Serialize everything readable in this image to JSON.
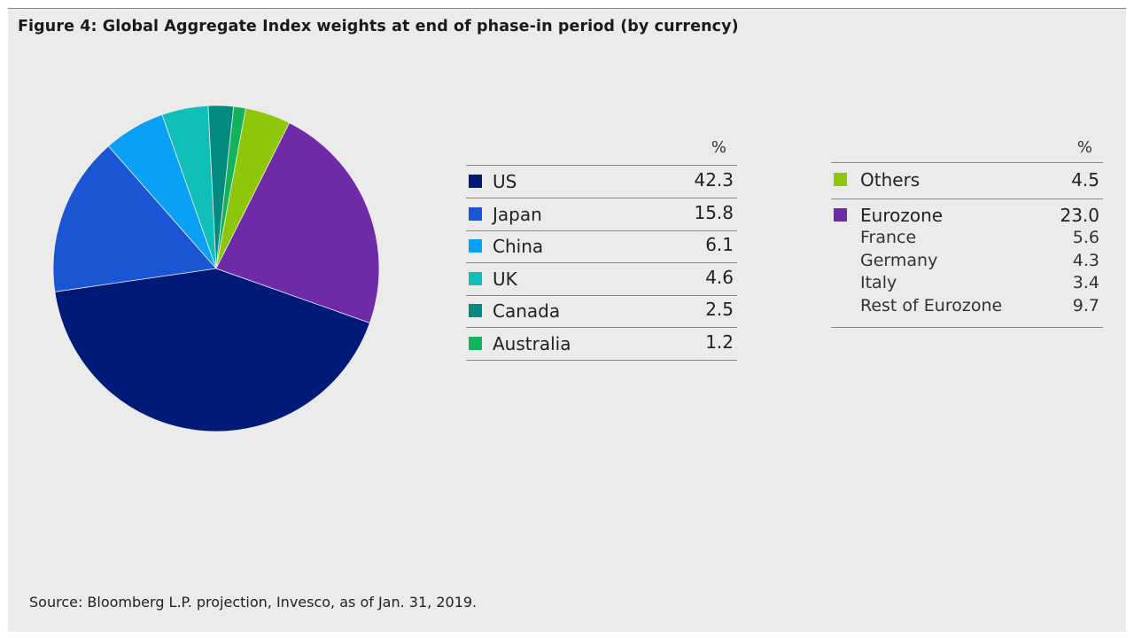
{
  "title": "Figure 4: Global Aggregate Index weights at end of phase-in period (by currency)",
  "source": "Source: Bloomberg L.P. projection, Invesco, as of Jan. 31, 2019.",
  "left_table": {
    "header": "%",
    "rows": [
      {
        "label": "US",
        "value": "42.3",
        "color": "#001a78"
      },
      {
        "label": "Japan",
        "value": "15.8",
        "color": "#1a55d4"
      },
      {
        "label": "China",
        "value": "6.1",
        "color": "#0aa0f5"
      },
      {
        "label": "UK",
        "value": "4.6",
        "color": "#0fbfb8"
      },
      {
        "label": "Canada",
        "value": "2.5",
        "color": "#008a80"
      },
      {
        "label": "Australia",
        "value": "1.2",
        "color": "#12b35a"
      }
    ]
  },
  "right_table": {
    "header": "%",
    "others": {
      "label": "Others",
      "value": "4.5",
      "color": "#8ec70a"
    },
    "eurozone": {
      "label": "Eurozone",
      "value": "23.0",
      "color": "#6f2aa8"
    },
    "eurozone_breakdown": [
      {
        "label": "France",
        "value": "5.6"
      },
      {
        "label": "Germany",
        "value": "4.3"
      },
      {
        "label": "Italy",
        "value": "3.4"
      },
      {
        "label": "Rest of Eurozone",
        "value": "9.7"
      }
    ]
  },
  "chart_data": {
    "type": "pie",
    "title": "Figure 4: Global Aggregate Index weights at end of phase-in period (by currency)",
    "unit": "%",
    "slices": [
      {
        "label": "US",
        "value": 42.3,
        "color": "#001a78"
      },
      {
        "label": "Japan",
        "value": 15.8,
        "color": "#1a55d4"
      },
      {
        "label": "China",
        "value": 6.1,
        "color": "#0aa0f5"
      },
      {
        "label": "UK",
        "value": 4.6,
        "color": "#0fbfb8"
      },
      {
        "label": "Canada",
        "value": 2.5,
        "color": "#008a80"
      },
      {
        "label": "Australia",
        "value": 1.2,
        "color": "#12b35a"
      },
      {
        "label": "Others",
        "value": 4.5,
        "color": "#8ec70a"
      },
      {
        "label": "Eurozone",
        "value": 23.0,
        "color": "#6f2aa8"
      }
    ]
  }
}
